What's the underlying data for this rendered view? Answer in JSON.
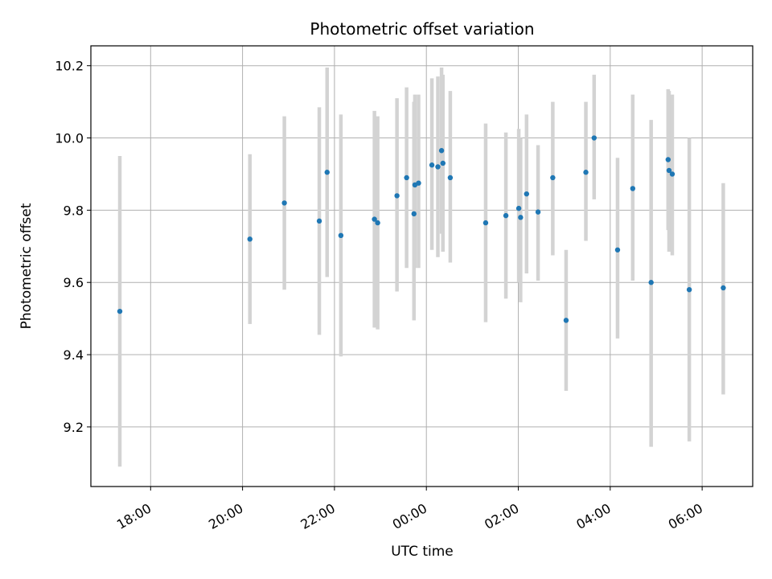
{
  "chart_data": {
    "type": "scatter",
    "title": "Photometric offset variation",
    "xlabel": "UTC time",
    "ylabel": "Photometric offset",
    "x_unit": "hours since 00:00 UTC",
    "xlim": [
      -7.3,
      7.1
    ],
    "ylim": [
      9.035,
      10.255
    ],
    "grid": true,
    "x_ticks": [
      {
        "value": -6,
        "label": "18:00"
      },
      {
        "value": -4,
        "label": "20:00"
      },
      {
        "value": -2,
        "label": "22:00"
      },
      {
        "value": 0,
        "label": "00:00"
      },
      {
        "value": 2,
        "label": "02:00"
      },
      {
        "value": 4,
        "label": "04:00"
      },
      {
        "value": 6,
        "label": "06:00"
      }
    ],
    "y_ticks": [
      {
        "value": 9.2,
        "label": "9.2"
      },
      {
        "value": 9.4,
        "label": "9.4"
      },
      {
        "value": 9.6,
        "label": "9.6"
      },
      {
        "value": 9.8,
        "label": "9.8"
      },
      {
        "value": 10.0,
        "label": "10.0"
      },
      {
        "value": 10.2,
        "label": "10.2"
      }
    ],
    "marker_color": "#1f77b4",
    "errorbar_color": "#d3d3d3",
    "points": [
      {
        "x": -6.67,
        "y": 9.52,
        "lo": 9.09,
        "hi": 9.95
      },
      {
        "x": -3.84,
        "y": 9.72,
        "lo": 9.485,
        "hi": 9.955
      },
      {
        "x": -3.09,
        "y": 9.82,
        "lo": 9.58,
        "hi": 10.06
      },
      {
        "x": -2.33,
        "y": 9.77,
        "lo": 9.455,
        "hi": 10.085
      },
      {
        "x": -2.16,
        "y": 9.905,
        "lo": 9.615,
        "hi": 10.195
      },
      {
        "x": -1.86,
        "y": 9.73,
        "lo": 9.395,
        "hi": 10.065
      },
      {
        "x": -1.13,
        "y": 9.775,
        "lo": 9.475,
        "hi": 10.075
      },
      {
        "x": -1.06,
        "y": 9.765,
        "lo": 9.47,
        "hi": 10.06
      },
      {
        "x": -0.64,
        "y": 9.84,
        "lo": 9.575,
        "hi": 10.11
      },
      {
        "x": -0.43,
        "y": 9.89,
        "lo": 9.64,
        "hi": 10.14
      },
      {
        "x": -0.27,
        "y": 9.79,
        "lo": 9.495,
        "hi": 10.1
      },
      {
        "x": -0.25,
        "y": 9.87,
        "lo": 9.64,
        "hi": 10.12
      },
      {
        "x": -0.17,
        "y": 9.875,
        "lo": 9.64,
        "hi": 10.12
      },
      {
        "x": 0.12,
        "y": 9.925,
        "lo": 9.69,
        "hi": 10.165
      },
      {
        "x": 0.25,
        "y": 9.92,
        "lo": 9.67,
        "hi": 10.17
      },
      {
        "x": 0.33,
        "y": 9.965,
        "lo": 9.735,
        "hi": 10.195
      },
      {
        "x": 0.36,
        "y": 9.93,
        "lo": 9.685,
        "hi": 10.175
      },
      {
        "x": 0.52,
        "y": 9.89,
        "lo": 9.655,
        "hi": 10.13
      },
      {
        "x": 1.29,
        "y": 9.765,
        "lo": 9.49,
        "hi": 10.04
      },
      {
        "x": 1.73,
        "y": 9.785,
        "lo": 9.555,
        "hi": 10.015
      },
      {
        "x": 2.01,
        "y": 9.805,
        "lo": 9.6,
        "hi": 10.025
      },
      {
        "x": 2.05,
        "y": 9.78,
        "lo": 9.545,
        "hi": 10.0
      },
      {
        "x": 2.18,
        "y": 9.845,
        "lo": 9.625,
        "hi": 10.065
      },
      {
        "x": 2.43,
        "y": 9.795,
        "lo": 9.605,
        "hi": 9.98
      },
      {
        "x": 2.75,
        "y": 9.89,
        "lo": 9.675,
        "hi": 10.1
      },
      {
        "x": 3.04,
        "y": 9.495,
        "lo": 9.3,
        "hi": 9.69
      },
      {
        "x": 3.47,
        "y": 9.905,
        "lo": 9.715,
        "hi": 10.1
      },
      {
        "x": 3.65,
        "y": 10.0,
        "lo": 9.83,
        "hi": 10.175
      },
      {
        "x": 4.16,
        "y": 9.69,
        "lo": 9.445,
        "hi": 9.945
      },
      {
        "x": 4.49,
        "y": 9.86,
        "lo": 9.605,
        "hi": 10.12
      },
      {
        "x": 4.89,
        "y": 9.6,
        "lo": 9.145,
        "hi": 10.05
      },
      {
        "x": 5.26,
        "y": 9.94,
        "lo": 9.745,
        "hi": 10.135
      },
      {
        "x": 5.28,
        "y": 9.91,
        "lo": 9.685,
        "hi": 10.13
      },
      {
        "x": 5.35,
        "y": 9.9,
        "lo": 9.675,
        "hi": 10.12
      },
      {
        "x": 5.72,
        "y": 9.58,
        "lo": 9.16,
        "hi": 10.0
      },
      {
        "x": 6.46,
        "y": 9.585,
        "lo": 9.29,
        "hi": 9.875
      }
    ]
  }
}
